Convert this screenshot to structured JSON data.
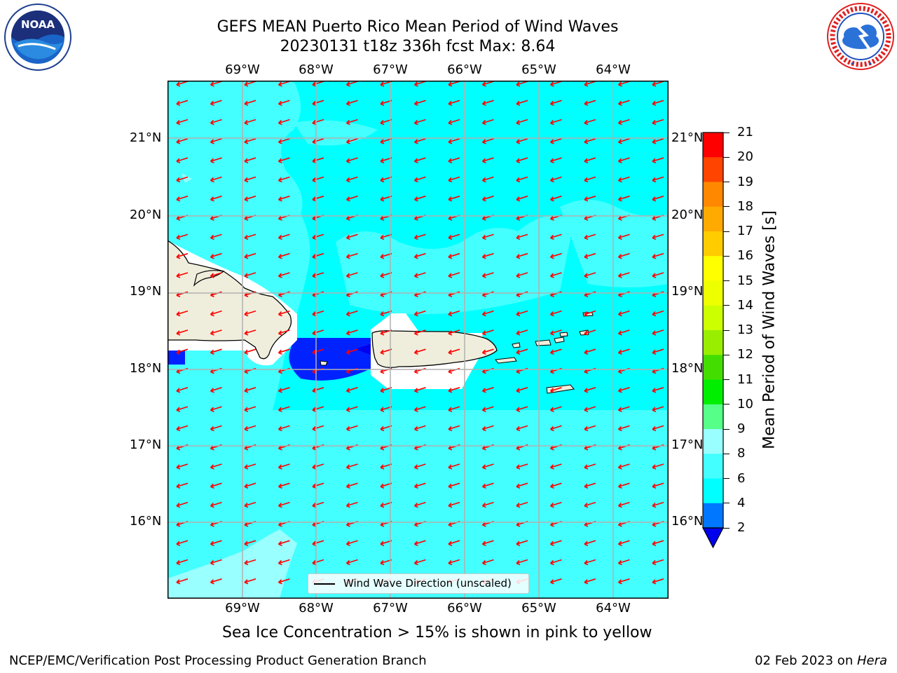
{
  "title": {
    "line1": "GEFS MEAN Puerto Rico Mean Period of Wind Waves",
    "line2": "20230131 t18z 336h fcst   Max: 8.64"
  },
  "logos": {
    "left": {
      "name": "NOAA logo",
      "text": "NOAA",
      "ring_text": "NATIONAL OCEANIC AND ATMOSPHERIC ADMINISTRATION · U.S. DEPARTMENT OF COMMERCE"
    },
    "right": {
      "name": "National Weather Service logo",
      "ring_text": "NATIONAL WEATHER SERVICE"
    }
  },
  "map": {
    "lon_labels": [
      "69°W",
      "68°W",
      "67°W",
      "66°W",
      "65°W",
      "64°W"
    ],
    "lat_labels": [
      "21°N",
      "20°N",
      "19°N",
      "18°N",
      "17°N",
      "16°N"
    ],
    "extent": {
      "lon": [
        -70.0,
        -63.25
      ],
      "lat": [
        15.05,
        21.75
      ]
    },
    "ocean_color": "#00ffff",
    "land_color": "#efeedc",
    "arrow_color": "#ff0000",
    "legend_label": "Wind Wave Direction (unscaled)"
  },
  "colorbar": {
    "label": "Mean Period of Wind Waves [s]",
    "ticks": [
      "2",
      "4",
      "6",
      "8",
      "9",
      "10",
      "11",
      "12",
      "13",
      "14",
      "15",
      "16",
      "17",
      "18",
      "19",
      "20",
      "21"
    ],
    "colors": [
      "#0022ff",
      "#00ffff",
      "#44ffff",
      "#99ffff",
      "#44ff88",
      "#00ee00",
      "#55dd00",
      "#99ee00",
      "#ccff00",
      "#eeff00",
      "#ffff00",
      "#ffdd00",
      "#ffbb00",
      "#ff8800",
      "#ff5500",
      "#ff2200",
      "#ff0000"
    ],
    "under_color": "#0000ee"
  },
  "subtitle": "Sea Ice Concentration > 15% is shown in pink to yellow",
  "footer": {
    "left": "NCEP/EMC/Verification Post Processing Product Generation Branch",
    "date": "02 Feb 2023 on ",
    "machine": "Hera"
  }
}
